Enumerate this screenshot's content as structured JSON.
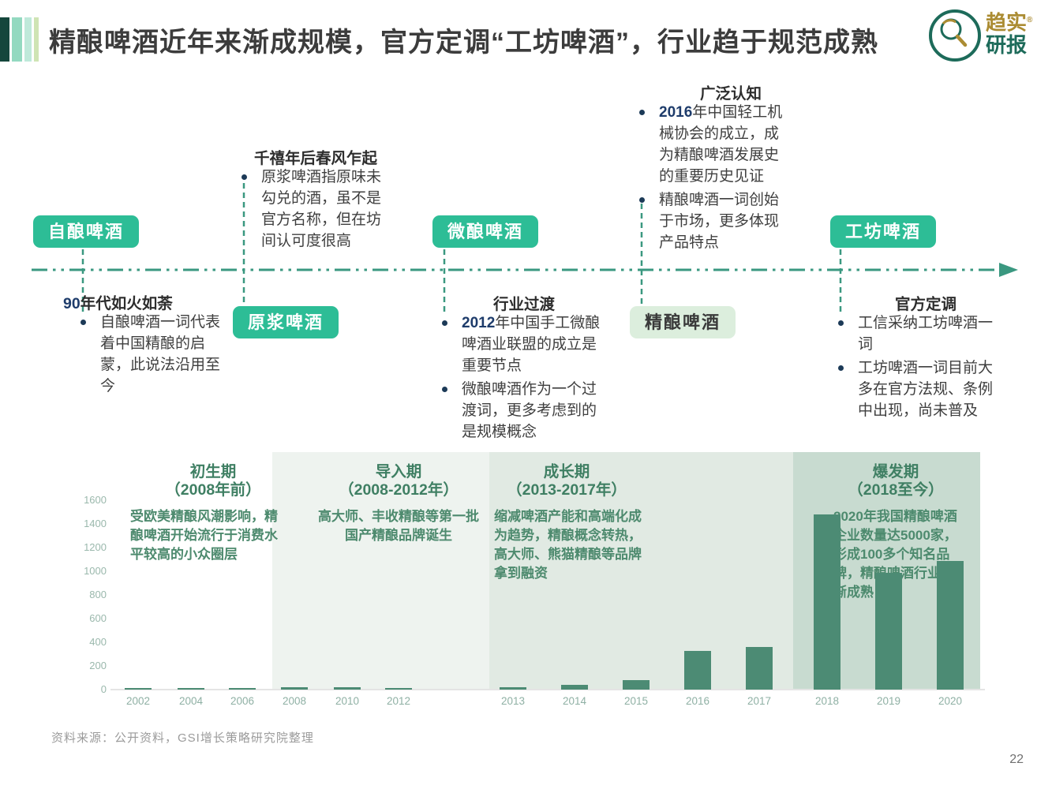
{
  "page": {
    "title": "精酿啤酒近年来渐成规模，官方定调“工坊啤酒”，行业趋于规范成熟",
    "source": "资料来源：公开资料，GSI增长策略研究院整理",
    "page_number": "22"
  },
  "logo": {
    "brand_top": "趋实",
    "brand_bottom": "研报",
    "registered": "®"
  },
  "timeline": {
    "labels": [
      {
        "text": "自酿啤酒",
        "style": "solid"
      },
      {
        "text": "原浆啤酒",
        "style": "solid"
      },
      {
        "text": "微酿啤酒",
        "style": "solid"
      },
      {
        "text": "精酿啤酒",
        "style": "pale"
      },
      {
        "text": "工坊啤酒",
        "style": "solid"
      }
    ],
    "blocks": [
      {
        "title_num": "90",
        "title": "年代如火如荼",
        "bullets": [
          {
            "text": "自酿啤酒一词代表着中国精酿的启蒙，此说法沿用至今"
          }
        ]
      },
      {
        "title": "千禧年后春风乍起",
        "bullets": [
          {
            "text": "原浆啤酒指原味未勾兑的酒，虽不是官方名称，但在坊间认可度很高"
          }
        ]
      },
      {
        "title": "行业过渡",
        "bullets": [
          {
            "num": "2012",
            "text": "年中国手工微酿啤酒业联盟的成立是重要节点"
          },
          {
            "text": "微酿啤酒作为一个过渡词，更多考虑到的是规模概念"
          }
        ]
      },
      {
        "title": "广泛认知",
        "bullets": [
          {
            "num": "2016",
            "text": "年中国轻工机械协会的成立，成为精酿啤酒发展史的重要历史见证"
          },
          {
            "text": "精酿啤酒一词创始于市场，更多体现产品特点"
          }
        ]
      },
      {
        "title": "官方定调",
        "bullets": [
          {
            "text": "工信采纳工坊啤酒一词"
          },
          {
            "text": "工坊啤酒一词目前大多在官方法规、条例中出现，尚未普及"
          }
        ]
      }
    ]
  },
  "chart_data": {
    "type": "bar",
    "title": "",
    "categories": [
      "2002",
      "2004",
      "2006",
      "2008",
      "2010",
      "2012",
      "2013",
      "2014",
      "2015",
      "2016",
      "2017",
      "2018",
      "2019",
      "2020"
    ],
    "values": [
      10,
      15,
      15,
      18,
      18,
      15,
      20,
      40,
      80,
      330,
      360,
      1480,
      990,
      1090
    ],
    "ylim": [
      0,
      1600
    ],
    "yticks": [
      0,
      200,
      400,
      600,
      800,
      1000,
      1200,
      1400,
      1600
    ],
    "grid": false,
    "legend": "none",
    "bar_color": "#4c8b74",
    "axis_label_color": "#8fb0a4",
    "phases": [
      {
        "name": "初生期",
        "years": "（2008年前）",
        "band_color": "none",
        "desc": "受欧美精酿风潮影响，精酿啤酒开始流行于消费水平较高的小众圈层"
      },
      {
        "name": "导入期",
        "years": "（2008-2012年）",
        "band_color": "#eef3ef",
        "desc": "高大师、丰收精酿等第一批国产精酿品牌诞生"
      },
      {
        "name": "成长期",
        "years": "（2013-2017年）",
        "band_color": "#e1eae3",
        "desc": "缩减啤酒产能和高端化成为趋势，精酿概念转热，高大师、熊猫精酿等品牌拿到融资"
      },
      {
        "name": "爆发期",
        "years": "（2018至今）",
        "band_color": "#c8dbd0",
        "desc": "2020年我国精酿啤酒企业数量达5000家，形成100多个知名品牌，精酿啤酒行业逐渐成熟"
      }
    ]
  },
  "colors": {
    "pill_green": "#2dbd96",
    "pill_pale": "#dceedd",
    "timeline_green": "#3a9880",
    "bullet_navy": "#1c3a57"
  }
}
